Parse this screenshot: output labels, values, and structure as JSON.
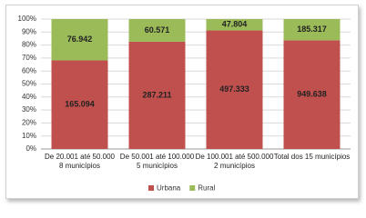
{
  "chart_data": {
    "type": "bar",
    "stacking": "percent",
    "categories": [
      "De 20.001 até 50.000\n8 municípios",
      "De 50.001 até 100.000\n5 municípios",
      "De 100.001 até 500.000\n2 municípios",
      "Total dos 15 municípios"
    ],
    "series": [
      {
        "name": "Urbana",
        "color": "#c0504d",
        "values": [
          165094,
          287211,
          497333,
          949638
        ],
        "value_labels": [
          "165.094",
          "287.211",
          "497.333",
          "949.638"
        ]
      },
      {
        "name": "Rural",
        "color": "#9bbb59",
        "values": [
          76942,
          60571,
          47804,
          185317
        ],
        "value_labels": [
          "76.942",
          "60.571",
          "47.804",
          "185.317"
        ]
      }
    ],
    "ylim": [
      0,
      100
    ],
    "yticks": [
      {
        "value": 0,
        "label": "0%"
      },
      {
        "value": 10,
        "label": "10%"
      },
      {
        "value": 20,
        "label": "20%"
      },
      {
        "value": 30,
        "label": "30%"
      },
      {
        "value": 40,
        "label": "40%"
      },
      {
        "value": 50,
        "label": "50%"
      },
      {
        "value": 60,
        "label": "60%"
      },
      {
        "value": 70,
        "label": "70%"
      },
      {
        "value": 80,
        "label": "80%"
      },
      {
        "value": 90,
        "label": "90%"
      },
      {
        "value": 100,
        "label": "100%"
      }
    ],
    "grid": true,
    "legend": "bottom"
  }
}
